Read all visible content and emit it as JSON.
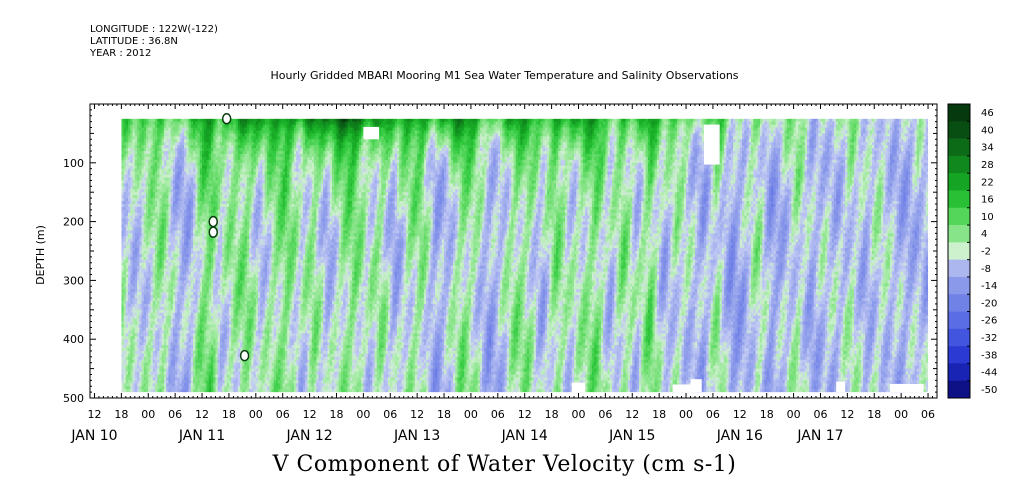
{
  "header": {
    "longitude": "LONGITUDE : 122W(-122)",
    "latitude": "LATITUDE : 36.8N",
    "year": "YEAR : 2012"
  },
  "title": "Hourly Gridded MBARI Mooring M1 Sea Water Temperature and Salinity Observations",
  "footer_label": "V Component of Water Velocity (cm s-1)",
  "chart_data": {
    "type": "heatmap",
    "title": "Hourly Gridded MBARI Mooring M1 Sea Water Temperature and Salinity Observations",
    "variable": "V Component of Water Velocity (cm s-1)",
    "xlabel": "",
    "ylabel": "DEPTH (m)",
    "y_ticks": [
      100,
      200,
      300,
      400,
      500
    ],
    "y_tick_labels": [
      "100",
      "200",
      "300",
      "400",
      "500"
    ],
    "ylim": [
      500,
      0
    ],
    "y_inverted": true,
    "data_depth_range": [
      25,
      490
    ],
    "x_hour_ticks": [
      {
        "t": 12,
        "label": "12"
      },
      {
        "t": 18,
        "label": "18"
      },
      {
        "t": 24,
        "label": "00"
      },
      {
        "t": 30,
        "label": "06"
      },
      {
        "t": 36,
        "label": "12"
      },
      {
        "t": 42,
        "label": "18"
      },
      {
        "t": 48,
        "label": "00"
      },
      {
        "t": 54,
        "label": "06"
      },
      {
        "t": 60,
        "label": "12"
      },
      {
        "t": 66,
        "label": "18"
      },
      {
        "t": 72,
        "label": "00"
      },
      {
        "t": 78,
        "label": "06"
      },
      {
        "t": 84,
        "label": "12"
      },
      {
        "t": 90,
        "label": "18"
      },
      {
        "t": 96,
        "label": "00"
      },
      {
        "t": 102,
        "label": "06"
      },
      {
        "t": 108,
        "label": "12"
      },
      {
        "t": 114,
        "label": "18"
      },
      {
        "t": 120,
        "label": "00"
      },
      {
        "t": 126,
        "label": "06"
      },
      {
        "t": 132,
        "label": "12"
      },
      {
        "t": 138,
        "label": "18"
      },
      {
        "t": 144,
        "label": "00"
      },
      {
        "t": 150,
        "label": "06"
      },
      {
        "t": 156,
        "label": "12"
      },
      {
        "t": 162,
        "label": "18"
      },
      {
        "t": 168,
        "label": "00"
      },
      {
        "t": 174,
        "label": "06"
      },
      {
        "t": 180,
        "label": "12"
      },
      {
        "t": 186,
        "label": "18"
      },
      {
        "t": 192,
        "label": "00"
      },
      {
        "t": 198,
        "label": "06"
      }
    ],
    "x_day_labels": [
      {
        "t": 12,
        "label": "JAN 10"
      },
      {
        "t": 36,
        "label": "JAN 11"
      },
      {
        "t": 60,
        "label": "JAN 12"
      },
      {
        "t": 84,
        "label": "JAN 13"
      },
      {
        "t": 108,
        "label": "JAN 14"
      },
      {
        "t": 132,
        "label": "JAN 15"
      },
      {
        "t": 156,
        "label": "JAN 16"
      },
      {
        "t": 174,
        "label": "JAN 17"
      }
    ],
    "xlim": [
      11,
      200
    ],
    "data_time_range": [
      18,
      198
    ],
    "colorbar": {
      "levels": [
        48,
        46,
        40,
        34,
        28,
        22,
        16,
        10,
        4,
        -2,
        -8,
        -14,
        -20,
        -26,
        -32,
        -38,
        -44,
        -50
      ],
      "tick_labels": [
        "46",
        "40",
        "34",
        "28",
        "22",
        "16",
        "10",
        "4",
        "-2",
        "-8",
        "-14",
        "-20",
        "-26",
        "-32",
        "-38",
        "-44",
        "-50"
      ],
      "vmin": -50,
      "vmax": 48
    },
    "stripe_pattern": [
      [
        18,
        2
      ],
      [
        21,
        -3
      ],
      [
        24,
        1
      ],
      [
        27,
        6
      ],
      [
        30,
        -5
      ],
      [
        33,
        -7
      ],
      [
        36,
        8
      ],
      [
        38,
        10
      ],
      [
        40,
        -2
      ],
      [
        43,
        4
      ],
      [
        46,
        7
      ],
      [
        49,
        -4
      ],
      [
        52,
        5
      ],
      [
        55,
        9
      ],
      [
        58,
        -3
      ],
      [
        61,
        6
      ],
      [
        64,
        -6
      ],
      [
        67,
        4
      ],
      [
        70,
        8
      ],
      [
        73,
        -2
      ],
      [
        76,
        5
      ],
      [
        79,
        -7
      ],
      [
        82,
        3
      ],
      [
        85,
        6
      ],
      [
        88,
        -9
      ],
      [
        91,
        -4
      ],
      [
        94,
        7
      ],
      [
        97,
        2
      ],
      [
        100,
        -8
      ],
      [
        103,
        -3
      ],
      [
        106,
        6
      ],
      [
        109,
        4
      ],
      [
        112,
        -6
      ],
      [
        115,
        8
      ],
      [
        118,
        -2
      ],
      [
        121,
        3
      ],
      [
        124,
        9
      ],
      [
        127,
        -5
      ],
      [
        130,
        7
      ],
      [
        133,
        -4
      ],
      [
        136,
        10
      ],
      [
        139,
        -6
      ],
      [
        142,
        2
      ],
      [
        145,
        -3
      ],
      [
        148,
        -8
      ],
      [
        151,
        5
      ],
      [
        154,
        -10
      ],
      [
        157,
        -6
      ],
      [
        160,
        4
      ],
      [
        163,
        -9
      ],
      [
        166,
        -4
      ],
      [
        169,
        3
      ],
      [
        172,
        -7
      ],
      [
        175,
        -2
      ],
      [
        178,
        -5
      ],
      [
        181,
        2
      ],
      [
        184,
        -6
      ],
      [
        187,
        1
      ],
      [
        190,
        -4
      ],
      [
        193,
        -7
      ],
      [
        196,
        -3
      ],
      [
        198,
        -5
      ]
    ],
    "surface_layer": [
      [
        18,
        12
      ],
      [
        30,
        14
      ],
      [
        40,
        18
      ],
      [
        46,
        26
      ],
      [
        52,
        20
      ],
      [
        56,
        24
      ],
      [
        64,
        30
      ],
      [
        68,
        40
      ],
      [
        74,
        24
      ],
      [
        80,
        22
      ],
      [
        90,
        26
      ],
      [
        100,
        20
      ],
      [
        110,
        18
      ],
      [
        118,
        22
      ],
      [
        126,
        14
      ],
      [
        134,
        16
      ],
      [
        146,
        12
      ],
      [
        154,
        10
      ],
      [
        164,
        6
      ],
      [
        176,
        4
      ],
      [
        188,
        2
      ],
      [
        198,
        2
      ]
    ],
    "missing_blocks": [
      {
        "t0": 72,
        "t1": 75.5,
        "d0": 39,
        "d1": 60
      },
      {
        "t0": 148,
        "t1": 151.5,
        "d0": 35,
        "d1": 103
      },
      {
        "t0": 118.5,
        "t1": 121.5,
        "d0": 474,
        "d1": 490
      },
      {
        "t0": 141,
        "t1": 145,
        "d0": 477,
        "d1": 490
      },
      {
        "t0": 145,
        "t1": 147.5,
        "d0": 468,
        "d1": 490
      },
      {
        "t0": 177.5,
        "t1": 179.5,
        "d0": 472,
        "d1": 490
      },
      {
        "t0": 189.5,
        "t1": 197,
        "d0": 476,
        "d1": 490
      }
    ],
    "missing_spots": [
      {
        "t": 41.5,
        "d": 25
      },
      {
        "t": 38.5,
        "d": 200
      },
      {
        "t": 38.5,
        "d": 218
      },
      {
        "t": 45.5,
        "d": 428
      }
    ]
  }
}
